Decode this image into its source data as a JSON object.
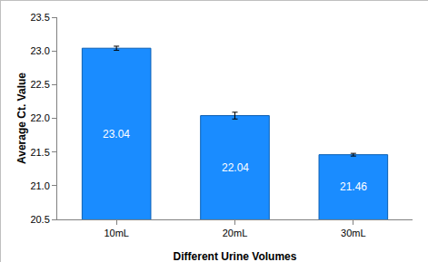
{
  "chart_data": {
    "type": "bar",
    "x_label": "Different Urine Volumes",
    "y_label": "Average Ct. Value",
    "categories": [
      "10mL",
      "20mL",
      "30mL"
    ],
    "values": [
      23.04,
      22.04,
      21.46
    ],
    "errors": [
      0.03,
      0.05,
      0.02
    ],
    "color": "#1a8cff",
    "ylim": [
      20.5,
      23.5
    ],
    "yticks": [
      20.5,
      {
        "value": 21,
        "label": "21.0"
      },
      21.5,
      {
        "value": 22,
        "label": "22.0"
      },
      22.5,
      {
        "value": 23,
        "label": "23.0"
      },
      23.5
    ],
    "grid": false,
    "data_labels": true
  }
}
